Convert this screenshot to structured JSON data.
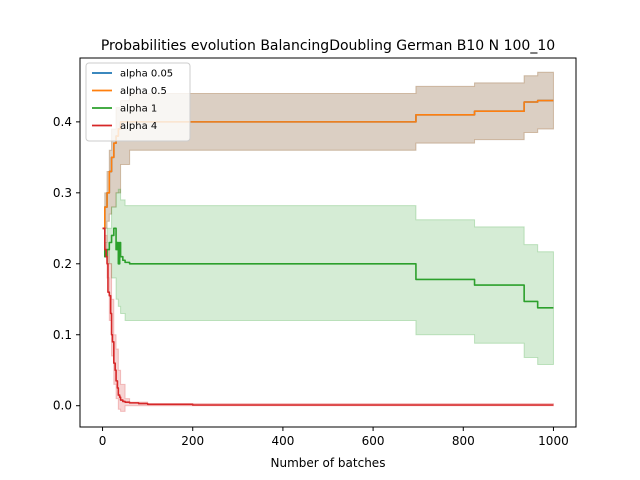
{
  "chart_data": {
    "type": "line",
    "title": "Probabilities evolution BalancingDoubling German B10 N 100_10",
    "xlabel": "Number of batches",
    "ylabel": "",
    "xlim": [
      -50,
      1050
    ],
    "ylim": [
      -0.03,
      0.49
    ],
    "xticks": [
      0,
      200,
      400,
      600,
      800,
      1000
    ],
    "yticks": [
      0.0,
      0.1,
      0.2,
      0.3,
      0.4
    ],
    "xtick_labels": [
      "0",
      "200",
      "400",
      "600",
      "800",
      "1000"
    ],
    "ytick_labels": [
      "0.0",
      "0.1",
      "0.2",
      "0.3",
      "0.4"
    ],
    "legend_position": "top-left",
    "grid": false,
    "series": [
      {
        "name": "alpha 0.05",
        "color": "#1f77b4",
        "x": [
          0,
          5,
          10,
          15,
          20,
          25,
          30,
          35,
          40,
          60,
          100,
          200,
          400,
          690,
          695,
          820,
          825,
          930,
          935,
          960,
          965,
          1000
        ],
        "y": [
          0.25,
          0.28,
          0.3,
          0.33,
          0.35,
          0.37,
          0.38,
          0.39,
          0.4,
          0.4,
          0.4,
          0.4,
          0.4,
          0.4,
          0.41,
          0.41,
          0.415,
          0.415,
          0.428,
          0.428,
          0.43,
          0.43
        ],
        "band": {
          "x": [
            0,
            5,
            10,
            15,
            20,
            30,
            40,
            60,
            690,
            695,
            820,
            825,
            930,
            935,
            960,
            965,
            1000
          ],
          "lower": [
            0.25,
            0.25,
            0.26,
            0.27,
            0.28,
            0.3,
            0.34,
            0.36,
            0.36,
            0.37,
            0.37,
            0.375,
            0.375,
            0.385,
            0.385,
            0.39,
            0.39
          ],
          "upper": [
            0.25,
            0.3,
            0.33,
            0.36,
            0.39,
            0.42,
            0.43,
            0.44,
            0.44,
            0.45,
            0.45,
            0.455,
            0.455,
            0.465,
            0.465,
            0.47,
            0.47
          ]
        }
      },
      {
        "name": "alpha 0.5",
        "color": "#ff7f0e",
        "x": [
          0,
          5,
          10,
          15,
          20,
          25,
          30,
          35,
          40,
          60,
          100,
          200,
          400,
          690,
          695,
          820,
          825,
          930,
          935,
          960,
          965,
          1000
        ],
        "y": [
          0.25,
          0.28,
          0.3,
          0.33,
          0.35,
          0.37,
          0.38,
          0.39,
          0.4,
          0.4,
          0.4,
          0.4,
          0.4,
          0.4,
          0.41,
          0.41,
          0.415,
          0.415,
          0.428,
          0.428,
          0.43,
          0.43
        ],
        "band": {
          "x": [
            0,
            5,
            10,
            15,
            20,
            30,
            40,
            60,
            690,
            695,
            820,
            825,
            930,
            935,
            960,
            965,
            1000
          ],
          "lower": [
            0.25,
            0.25,
            0.26,
            0.27,
            0.28,
            0.3,
            0.34,
            0.36,
            0.36,
            0.37,
            0.37,
            0.375,
            0.375,
            0.385,
            0.385,
            0.39,
            0.39
          ],
          "upper": [
            0.25,
            0.3,
            0.33,
            0.36,
            0.39,
            0.42,
            0.43,
            0.44,
            0.44,
            0.45,
            0.45,
            0.455,
            0.455,
            0.465,
            0.465,
            0.47,
            0.47
          ]
        }
      },
      {
        "name": "alpha 1",
        "color": "#2ca02c",
        "x": [
          0,
          5,
          10,
          15,
          20,
          25,
          30,
          32,
          35,
          38,
          40,
          45,
          50,
          60,
          100,
          200,
          400,
          690,
          695,
          820,
          825,
          930,
          935,
          960,
          965,
          1000
        ],
        "y": [
          0.25,
          0.21,
          0.22,
          0.23,
          0.24,
          0.25,
          0.22,
          0.23,
          0.2,
          0.23,
          0.21,
          0.205,
          0.202,
          0.2,
          0.2,
          0.2,
          0.2,
          0.2,
          0.178,
          0.178,
          0.17,
          0.17,
          0.147,
          0.147,
          0.138,
          0.138
        ],
        "band": {
          "x": [
            0,
            5,
            10,
            20,
            30,
            35,
            40,
            50,
            60,
            690,
            695,
            820,
            825,
            930,
            935,
            960,
            965,
            1000
          ],
          "lower": [
            0.25,
            0.21,
            0.2,
            0.18,
            0.15,
            0.14,
            0.13,
            0.12,
            0.12,
            0.12,
            0.1,
            0.1,
            0.088,
            0.088,
            0.068,
            0.068,
            0.058,
            0.058
          ],
          "upper": [
            0.25,
            0.23,
            0.25,
            0.28,
            0.3,
            0.305,
            0.29,
            0.282,
            0.282,
            0.282,
            0.262,
            0.262,
            0.252,
            0.252,
            0.227,
            0.227,
            0.217,
            0.217
          ]
        }
      },
      {
        "name": "alpha 4",
        "color": "#d62728",
        "x": [
          0,
          3,
          5,
          8,
          10,
          12,
          15,
          18,
          20,
          22,
          25,
          28,
          30,
          33,
          35,
          38,
          40,
          45,
          50,
          60,
          80,
          100,
          200,
          400,
          1000
        ],
        "y": [
          0.25,
          0.25,
          0.22,
          0.21,
          0.2,
          0.16,
          0.155,
          0.13,
          0.1,
          0.09,
          0.06,
          0.05,
          0.035,
          0.025,
          0.015,
          0.012,
          0.008,
          0.006,
          0.005,
          0.004,
          0.003,
          0.002,
          0.001,
          0.001,
          0.001
        ],
        "band": {
          "x": [
            0,
            5,
            10,
            15,
            20,
            25,
            30,
            35,
            40,
            50,
            60,
            100,
            1000
          ],
          "lower": [
            0.25,
            0.21,
            0.18,
            0.12,
            0.07,
            0.03,
            0.01,
            -0.005,
            -0.008,
            0.0,
            0.0,
            0.0,
            0.0
          ],
          "upper": [
            0.25,
            0.24,
            0.22,
            0.2,
            0.15,
            0.1,
            0.08,
            0.05,
            0.03,
            0.01,
            0.005,
            0.003,
            0.002
          ]
        }
      }
    ]
  }
}
